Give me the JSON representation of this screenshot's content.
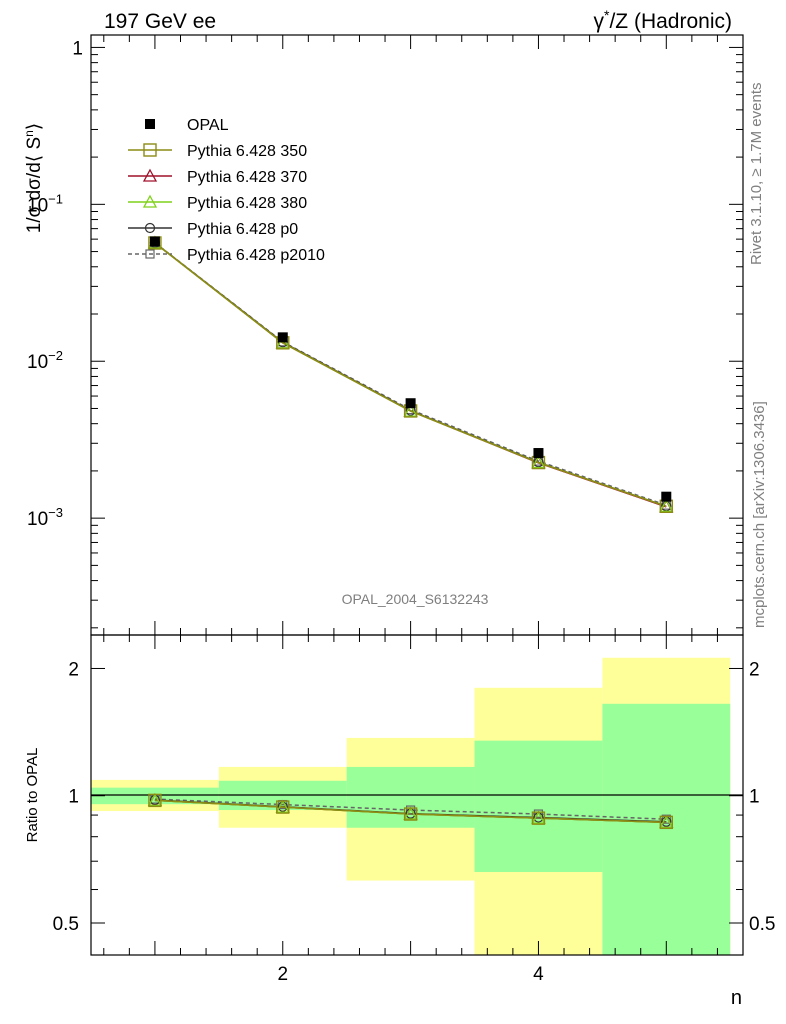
{
  "header": {
    "left_title": "197 GeV ee",
    "right_title_pre": "γ",
    "right_title_sup": "*",
    "right_title_post": "/Z (Hadronic)"
  },
  "side": {
    "rivet": "Rivet 3.1.10, ≥ 1.7M events",
    "mcplots": "mcplots.cern.ch [arXiv:1306.3436]"
  },
  "watermark": "OPAL_2004_S6132243",
  "axes": {
    "main_ylabel": "1/σ dσ/d⟨ S",
    "main_ylabel_sup": "n",
    "main_ylabel_close": "⟩",
    "ratio_ylabel": "Ratio to OPAL",
    "xlabel": "n",
    "main_yticks": [
      {
        "value": 1,
        "base": "1",
        "exp": ""
      },
      {
        "value": 0.1,
        "base": "10",
        "exp": "−1"
      },
      {
        "value": 0.01,
        "base": "10",
        "exp": "−2"
      },
      {
        "value": 0.001,
        "base": "10",
        "exp": "−3"
      }
    ],
    "ratio_yticks": [
      "2",
      "1",
      "0.5"
    ],
    "xticks": [
      "2",
      "4"
    ]
  },
  "chart_data": {
    "type": "line",
    "x": [
      1,
      2,
      3,
      4,
      5
    ],
    "x_bin_edges": [
      0.5,
      1.5,
      2.5,
      3.5,
      4.5,
      5.5
    ],
    "main": {
      "yscale": "log",
      "ylim": [
        0.00018,
        1.2
      ],
      "xlim": [
        0.5,
        5.6
      ],
      "data": {
        "name": "OPAL",
        "values": [
          0.058,
          0.0142,
          0.0054,
          0.0026,
          0.00137
        ]
      },
      "series": [
        {
          "name": "Pythia 6.428 350",
          "color": "#8c8c14",
          "marker": "square-open",
          "line": "solid",
          "values": [
            0.0567,
            0.0131,
            0.00482,
            0.00226,
            0.00119
          ]
        },
        {
          "name": "Pythia 6.428 370",
          "color": "#a0102a",
          "marker": "triangle-open",
          "line": "solid",
          "values": [
            0.0567,
            0.0131,
            0.00481,
            0.00225,
            0.00118
          ]
        },
        {
          "name": "Pythia 6.428 380",
          "color": "#7fd11c",
          "marker": "triangle-open",
          "line": "solid",
          "values": [
            0.0567,
            0.0131,
            0.00481,
            0.00226,
            0.00119
          ]
        },
        {
          "name": "Pythia 6.428 p0",
          "color": "#333333",
          "marker": "circle-open",
          "line": "solid",
          "values": [
            0.0568,
            0.0132,
            0.00484,
            0.00227,
            0.00119
          ]
        },
        {
          "name": "Pythia 6.428 p2010",
          "color": "#666666",
          "marker": "square-open-small",
          "line": "dashed",
          "values": [
            0.0569,
            0.0133,
            0.00492,
            0.00231,
            0.00121
          ]
        }
      ],
      "legend_position": "top-left"
    },
    "ratio": {
      "yscale": "log",
      "ylim": [
        0.42,
        2.4
      ],
      "reference_line": 1,
      "green_band": [
        [
          0.955,
          1.045
        ],
        [
          0.925,
          1.085
        ],
        [
          0.84,
          1.17
        ],
        [
          0.66,
          1.35
        ],
        [
          0.39,
          1.65
        ]
      ],
      "yellow_band": [
        [
          0.92,
          1.09
        ],
        [
          0.84,
          1.17
        ],
        [
          0.63,
          1.37
        ],
        [
          0.4,
          1.8
        ],
        [
          0.4,
          2.12
        ]
      ],
      "series": [
        {
          "name": "Pythia 6.428 350",
          "values": [
            0.975,
            0.94,
            0.905,
            0.885,
            0.865
          ]
        },
        {
          "name": "Pythia 6.428 370",
          "values": [
            0.975,
            0.94,
            0.905,
            0.885,
            0.865
          ]
        },
        {
          "name": "Pythia 6.428 380",
          "values": [
            0.975,
            0.94,
            0.905,
            0.885,
            0.865
          ]
        },
        {
          "name": "Pythia 6.428 p0",
          "values": [
            0.977,
            0.942,
            0.907,
            0.888,
            0.868
          ]
        },
        {
          "name": "Pythia 6.428 p2010",
          "values": [
            0.982,
            0.953,
            0.925,
            0.905,
            0.88
          ]
        }
      ]
    },
    "ratio_label_unused": ""
  }
}
